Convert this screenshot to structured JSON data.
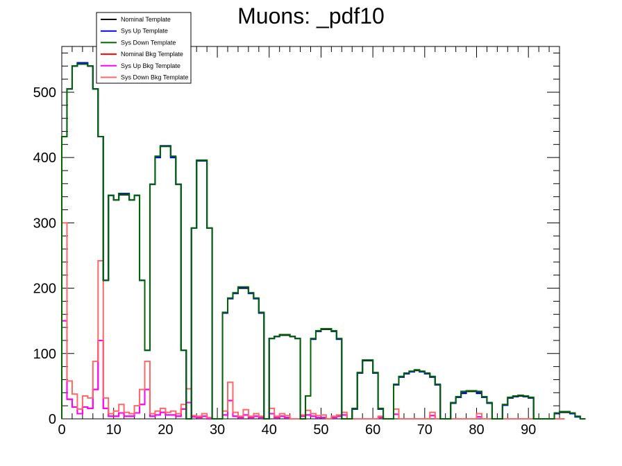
{
  "chart_data": {
    "type": "line",
    "title": "Muons: _pdf10",
    "xlabel": "",
    "ylabel": "",
    "xlim": [
      0,
      96
    ],
    "ylim": [
      0,
      570
    ],
    "grid": false,
    "legend_position": "top-left",
    "x_ticks": [
      0,
      10,
      20,
      30,
      40,
      50,
      60,
      70,
      80,
      90
    ],
    "y_ticks": [
      0,
      100,
      200,
      300,
      400,
      500
    ],
    "bin_width": 1,
    "series": [
      {
        "name": "Nominal Template",
        "color": "#000000",
        "values": [
          432,
          505,
          540,
          543,
          543,
          540,
          505,
          432,
          212,
          342,
          335,
          343,
          343,
          335,
          342,
          212,
          105,
          359,
          400,
          417,
          417,
          400,
          359,
          105,
          0,
          292,
          395,
          395,
          292,
          0,
          0,
          162,
          184,
          192,
          200,
          200,
          192,
          184,
          162,
          0,
          123,
          126,
          128,
          128,
          126,
          123,
          0,
          35,
          122,
          134,
          137,
          137,
          134,
          122,
          0,
          0,
          15,
          70,
          89,
          89,
          70,
          15,
          0,
          0,
          52,
          64,
          69,
          72,
          74,
          72,
          69,
          64,
          52,
          0,
          0,
          24,
          33,
          39,
          42,
          42,
          39,
          33,
          24,
          0,
          0,
          21,
          32,
          34,
          35,
          34,
          32,
          0,
          0,
          0,
          0,
          8,
          10,
          10,
          8,
          3,
          0
        ]
      },
      {
        "name": "Sys Up Template",
        "color": "#0000ff",
        "values": [
          432,
          505,
          540,
          545,
          545,
          540,
          505,
          432,
          212,
          342,
          335,
          345,
          345,
          335,
          342,
          212,
          105,
          359,
          400,
          418,
          418,
          400,
          359,
          105,
          0,
          292,
          395,
          395,
          292,
          0,
          0,
          162,
          184,
          192,
          201,
          201,
          192,
          184,
          162,
          0,
          123,
          126,
          129,
          129,
          126,
          123,
          0,
          35,
          122,
          134,
          138,
          138,
          134,
          122,
          0,
          0,
          15,
          70,
          90,
          90,
          70,
          15,
          0,
          0,
          52,
          64,
          69,
          72,
          75,
          72,
          69,
          64,
          52,
          0,
          0,
          24,
          33,
          40,
          43,
          43,
          40,
          33,
          24,
          0,
          0,
          21,
          32,
          34,
          36,
          34,
          32,
          0,
          0,
          0,
          0,
          8,
          11,
          11,
          8,
          3,
          0
        ]
      },
      {
        "name": "Sys Down Template",
        "color": "#006600",
        "values": [
          432,
          505,
          540,
          543,
          543,
          540,
          505,
          432,
          212,
          342,
          335,
          344,
          344,
          335,
          342,
          212,
          105,
          359,
          402,
          417,
          417,
          402,
          359,
          105,
          0,
          292,
          396,
          396,
          292,
          0,
          0,
          163,
          185,
          193,
          202,
          202,
          193,
          185,
          163,
          0,
          123,
          126,
          129,
          129,
          126,
          123,
          0,
          35,
          123,
          135,
          138,
          138,
          135,
          123,
          0,
          0,
          16,
          71,
          90,
          90,
          71,
          16,
          0,
          0,
          53,
          65,
          70,
          73,
          75,
          73,
          70,
          65,
          53,
          0,
          0,
          25,
          34,
          42,
          43,
          43,
          42,
          34,
          25,
          0,
          0,
          22,
          33,
          35,
          36,
          35,
          33,
          0,
          0,
          0,
          0,
          9,
          11,
          11,
          9,
          4,
          0
        ]
      },
      {
        "name": "Nominal Bkg Template",
        "color": "#ff0000",
        "values": [
          150,
          30,
          18,
          8,
          18,
          16,
          45,
          120,
          16,
          4,
          4,
          9,
          4,
          4,
          9,
          22,
          45,
          4,
          6,
          10,
          6,
          6,
          4,
          15,
          25,
          3,
          2,
          4,
          0,
          0,
          0,
          6,
          28,
          4,
          2,
          6,
          2,
          4,
          2,
          0,
          8,
          2,
          4,
          2,
          0,
          0,
          4,
          6,
          4,
          2,
          2,
          0,
          2,
          4,
          6,
          0,
          0,
          0,
          0,
          0,
          0,
          2,
          0,
          0,
          7,
          0,
          0,
          0,
          0,
          0,
          0,
          5,
          0,
          0,
          0,
          0,
          0,
          0,
          0,
          0,
          3,
          0,
          0,
          0,
          0,
          0,
          0,
          0,
          0,
          0,
          0,
          0,
          0,
          0,
          0,
          0,
          0
        ]
      },
      {
        "name": "Sys Up Bkg Template",
        "color": "#ff00ff",
        "values": [
          150,
          30,
          18,
          8,
          18,
          16,
          45,
          120,
          16,
          4,
          4,
          9,
          4,
          4,
          9,
          22,
          45,
          4,
          6,
          10,
          6,
          6,
          4,
          15,
          25,
          3,
          2,
          4,
          0,
          0,
          0,
          6,
          28,
          4,
          2,
          6,
          2,
          4,
          2,
          0,
          8,
          2,
          4,
          2,
          0,
          0,
          4,
          6,
          4,
          2,
          2,
          0,
          2,
          4,
          6,
          0,
          0,
          0,
          0,
          0,
          0,
          2,
          0,
          0,
          7,
          0,
          0,
          0,
          0,
          0,
          0,
          5,
          0,
          0,
          0,
          0,
          0,
          0,
          0,
          0,
          3,
          0,
          0,
          0,
          0,
          0,
          0,
          0,
          0,
          0,
          0,
          0,
          0,
          0,
          0,
          0,
          0
        ]
      },
      {
        "name": "Sys Down Bkg Template",
        "color": "#ff6666",
        "values": [
          300,
          58,
          38,
          15,
          35,
          32,
          88,
          242,
          32,
          8,
          12,
          22,
          10,
          8,
          20,
          45,
          88,
          8,
          12,
          16,
          10,
          12,
          8,
          22,
          46,
          5,
          4,
          8,
          2,
          0,
          0,
          12,
          56,
          10,
          4,
          14,
          4,
          8,
          4,
          0,
          16,
          4,
          8,
          5,
          0,
          0,
          6,
          13,
          8,
          5,
          6,
          0,
          4,
          6,
          10,
          0,
          0,
          0,
          0,
          0,
          0,
          4,
          0,
          0,
          15,
          0,
          0,
          0,
          0,
          0,
          0,
          10,
          0,
          0,
          0,
          0,
          0,
          0,
          0,
          0,
          8,
          0,
          0,
          0,
          0,
          0,
          0,
          0,
          0,
          0,
          0,
          0,
          0,
          0,
          0,
          0,
          0
        ]
      }
    ]
  }
}
